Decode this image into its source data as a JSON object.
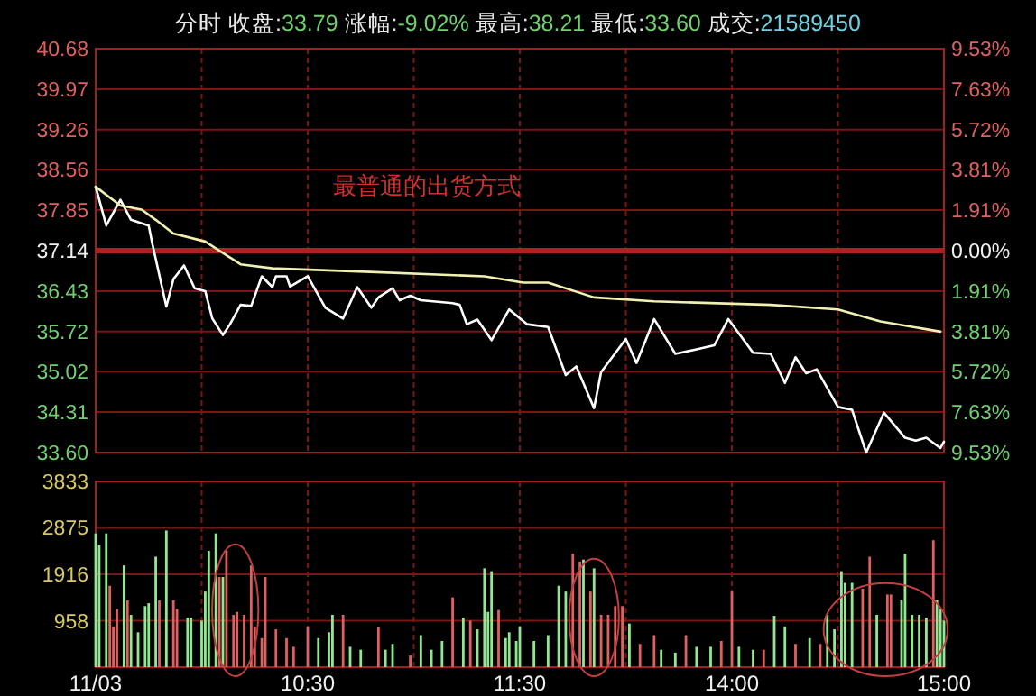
{
  "chart_data": [
    {
      "type": "line",
      "subtitle": "分时  收盘:33.79  涨幅:-9.02%  最高:38.21  最低:33.60  成交:21589450",
      "annotations": [
        "最普通的出货方式"
      ],
      "categories": [
        null,
        null,
        null,
        null,
        null,
        null,
        null,
        null,
        null,
        null,
        null,
        null,
        null,
        null,
        null,
        null,
        null,
        null,
        null,
        null,
        null,
        null,
        null,
        null,
        null,
        null,
        null,
        null,
        null,
        null,
        null,
        null,
        null,
        null,
        null,
        null,
        null,
        null,
        null,
        null,
        null,
        null,
        null,
        null,
        null,
        null,
        null,
        null,
        null,
        null,
        null,
        null,
        null,
        null,
        null,
        null,
        null,
        null,
        null,
        null,
        null,
        null,
        null,
        null,
        null,
        null,
        null,
        null,
        null,
        null,
        null,
        null,
        null,
        null,
        null,
        null,
        null,
        null,
        null,
        null,
        null,
        null,
        null,
        null,
        null,
        null,
        null,
        null,
        null,
        null,
        null,
        null,
        null,
        null,
        null,
        null,
        null,
        null,
        null,
        null,
        null,
        null,
        null,
        null,
        null,
        null,
        null,
        null,
        null,
        null,
        null,
        null,
        null,
        null,
        null,
        null,
        null,
        null,
        null,
        null,
        null,
        null,
        null,
        null,
        null,
        null,
        null,
        null,
        null,
        null,
        null,
        null,
        null,
        null,
        null,
        null,
        null,
        null,
        null,
        null,
        null,
        null,
        null,
        null,
        null,
        null,
        null,
        null,
        null,
        null,
        null,
        null,
        null,
        null,
        null,
        null,
        null,
        null,
        null,
        null,
        null,
        null,
        null,
        null,
        null,
        null,
        null,
        null,
        null,
        null,
        null,
        null,
        null,
        null,
        null,
        null,
        null,
        null,
        null,
        null,
        null,
        null,
        null,
        null,
        null,
        null,
        null,
        null,
        null,
        null,
        null,
        null,
        null,
        null,
        null,
        null,
        null,
        null,
        null,
        null,
        null,
        null,
        null,
        null,
        null,
        null,
        null,
        null,
        null,
        null,
        null,
        null,
        null,
        null,
        null,
        null,
        null,
        null,
        null,
        null,
        null,
        null,
        null,
        null,
        null,
        null,
        null,
        null,
        null,
        null,
        null,
        null,
        null,
        null,
        null,
        null,
        null,
        null,
        null,
        null,
        null
      ],
      "series": [
        {
          "color": "#ffffff",
          "values": [
            38.26,
            null,
            null,
            37.58,
            null,
            null,
            null,
            38.03,
            null,
            null,
            37.68,
            null,
            null,
            null,
            null,
            37.58,
            37.27,
            null,
            null,
            null,
            36.16,
            null,
            36.64,
            null,
            null,
            36.88,
            null,
            null,
            36.48,
            null,
            null,
            36.43,
            null,
            35.95,
            null,
            null,
            35.66,
            null,
            35.85,
            null,
            null,
            36.19,
            null,
            null,
            36.17,
            null,
            null,
            36.69,
            null,
            null,
            36.5,
            36.69,
            null,
            null,
            36.69,
            36.51,
            null,
            null,
            null,
            null,
            36.69,
            null,
            null,
            null,
            null,
            36.14,
            null,
            null,
            null,
            null,
            35.95,
            null,
            null,
            null,
            36.5,
            null,
            null,
            null,
            36.14,
            null,
            36.32,
            null,
            null,
            null,
            36.48,
            null,
            36.27,
            null,
            null,
            36.35,
            null,
            null,
            36.27,
            null,
            null,
            null,
            null,
            null,
            null,
            null,
            null,
            36.22,
            null,
            36.19,
            null,
            35.85,
            null,
            null,
            35.93,
            null,
            null,
            null,
            35.57,
            null,
            null,
            null,
            null,
            36.11,
            null,
            null,
            null,
            null,
            35.85,
            null,
            null,
            null,
            null,
            null,
            35.8,
            null,
            null,
            null,
            null,
            34.96,
            null,
            null,
            35.11,
            null,
            null,
            null,
            null,
            34.38,
            null,
            35.01,
            null,
            null,
            null,
            null,
            null,
            null,
            35.59,
            null,
            null,
            35.17,
            null,
            null,
            null,
            null,
            35.94,
            null,
            null,
            null,
            null,
            null,
            35.33,
            null,
            null,
            null,
            null,
            null,
            35.41,
            null,
            null,
            null,
            null,
            35.48,
            null,
            null,
            null,
            35.94,
            null,
            null,
            null,
            null,
            null,
            null,
            35.35,
            null,
            null,
            null,
            null,
            35.33,
            null,
            null,
            null,
            34.82,
            null,
            null,
            35.27,
            null,
            null,
            34.99,
            null,
            null,
            35.06,
            null,
            null,
            null,
            null,
            null,
            34.4,
            null,
            null,
            null,
            34.35,
            null,
            null,
            null,
            33.6,
            null,
            null,
            null,
            null,
            34.3,
            null,
            null,
            null,
            null,
            null,
            33.86,
            null,
            null,
            33.81,
            null,
            null,
            33.86,
            null,
            null,
            null,
            33.68,
            33.79
          ]
        },
        {
          "color": "#f0f0b0",
          "values": [
            38.26,
            null,
            null,
            null,
            null,
            null,
            null,
            37.93,
            null,
            null,
            null,
            null,
            null,
            37.86,
            null,
            null,
            null,
            37.68,
            null,
            null,
            null,
            null,
            37.44,
            null,
            null,
            null,
            null,
            null,
            null,
            null,
            null,
            37.3,
            null,
            null,
            null,
            null,
            null,
            37.06,
            null,
            null,
            null,
            36.9,
            null,
            null,
            null,
            null,
            null,
            null,
            null,
            null,
            36.83,
            null,
            null,
            null,
            null,
            null,
            null,
            null,
            null,
            null,
            null,
            null,
            null,
            null,
            null,
            null,
            null,
            null,
            null,
            null,
            null,
            null,
            null,
            null,
            null,
            null,
            36.77,
            null,
            null,
            null,
            null,
            null,
            null,
            null,
            null,
            null,
            null,
            null,
            null,
            null,
            null,
            null,
            null,
            null,
            null,
            null,
            null,
            null,
            null,
            null,
            null,
            null,
            null,
            null,
            null,
            null,
            null,
            null,
            null,
            null,
            36.69,
            null,
            null,
            null,
            null,
            null,
            null,
            null,
            null,
            null,
            null,
            36.58,
            null,
            null,
            null,
            null,
            null,
            null,
            36.58,
            null,
            null,
            null,
            null,
            null,
            null,
            null,
            null,
            null,
            null,
            null,
            null,
            36.32,
            null,
            null,
            null,
            null,
            null,
            null,
            null,
            null,
            null,
            null,
            null,
            null,
            null,
            null,
            null,
            null,
            36.25,
            null,
            null,
            null,
            null,
            null,
            null,
            null,
            null,
            null,
            null,
            null,
            null,
            null,
            null,
            null,
            null,
            null,
            null,
            null,
            null,
            null,
            null,
            null,
            null,
            null,
            null,
            null,
            null,
            null,
            null,
            null,
            null,
            36.19,
            null,
            null,
            null,
            null,
            null,
            null,
            null,
            null,
            null,
            null,
            null,
            null,
            null,
            null,
            null,
            null,
            null,
            null,
            36.11,
            null,
            null,
            null,
            null,
            null,
            null,
            null,
            null,
            null,
            null,
            null,
            35.9,
            null,
            null,
            null,
            null,
            null,
            null,
            null,
            null,
            null,
            null,
            null,
            null,
            null,
            null,
            null,
            null,
            35.72,
            null
          ]
        }
      ],
      "ylim": [
        33.6,
        40.68
      ],
      "yticks": [
        {
          "value": 33.6,
          "label": "33.60"
        },
        {
          "value": 34.31,
          "label": "34.31"
        },
        {
          "value": 35.02,
          "label": "35.02"
        },
        {
          "value": 35.72,
          "label": "35.72"
        },
        {
          "value": 36.43,
          "label": "36.43"
        },
        {
          "value": 37.14,
          "label": "37.14"
        },
        {
          "value": 37.85,
          "label": "37.85"
        },
        {
          "value": 38.56,
          "label": "38.56"
        },
        {
          "value": 39.26,
          "label": "39.26"
        },
        {
          "value": 39.97,
          "label": "39.97"
        },
        {
          "value": 40.68,
          "label": "40.68"
        }
      ],
      "y2lim": [
        -9.53,
        9.53
      ],
      "y2ticks": [
        {
          "value": -9.53,
          "label": "9.53%"
        },
        {
          "value": -7.63,
          "label": "7.63%"
        },
        {
          "value": -5.72,
          "label": "5.72%"
        },
        {
          "value": -3.81,
          "label": "3.81%"
        },
        {
          "value": -1.91,
          "label": "1.91%"
        },
        {
          "value": 0,
          "label": "0.00%"
        },
        {
          "value": 1.91,
          "label": "1.91%"
        },
        {
          "value": 3.81,
          "label": "3.81%"
        },
        {
          "value": 5.72,
          "label": "5.72%"
        },
        {
          "value": 7.63,
          "label": "7.63%"
        },
        {
          "value": 9.53,
          "label": "9.53%"
        }
      ],
      "ref_lines": [
        {
          "axis": "y",
          "value": 37.14,
          "color": "#b02020"
        }
      ],
      "grid": true,
      "tick_labels": "y"
    },
    {
      "type": "bar",
      "categories": [
        "11/03",
        null,
        null,
        null,
        null,
        null,
        null,
        null,
        null,
        null,
        null,
        null,
        null,
        null,
        null,
        null,
        null,
        null,
        null,
        null,
        null,
        null,
        null,
        null,
        null,
        null,
        null,
        null,
        null,
        null,
        null,
        null,
        null,
        null,
        null,
        null,
        null,
        null,
        null,
        null,
        null,
        null,
        null,
        null,
        null,
        null,
        null,
        null,
        null,
        null,
        null,
        null,
        null,
        null,
        null,
        null,
        null,
        null,
        null,
        null,
        "10:30",
        null,
        null,
        null,
        null,
        null,
        null,
        null,
        null,
        null,
        null,
        null,
        null,
        null,
        null,
        null,
        null,
        null,
        null,
        null,
        null,
        null,
        null,
        null,
        null,
        null,
        null,
        null,
        null,
        null,
        null,
        null,
        null,
        null,
        null,
        null,
        null,
        null,
        null,
        null,
        null,
        null,
        null,
        null,
        null,
        null,
        null,
        null,
        null,
        null,
        null,
        null,
        null,
        null,
        null,
        null,
        null,
        null,
        null,
        null,
        "11:30",
        null,
        null,
        null,
        null,
        null,
        null,
        null,
        null,
        null,
        null,
        null,
        null,
        null,
        null,
        null,
        null,
        null,
        null,
        null,
        null,
        null,
        null,
        null,
        null,
        null,
        null,
        null,
        null,
        null,
        null,
        null,
        null,
        null,
        null,
        null,
        null,
        null,
        null,
        null,
        null,
        null,
        null,
        null,
        null,
        null,
        null,
        null,
        null,
        null,
        null,
        null,
        null,
        null,
        null,
        null,
        null,
        null,
        null,
        null,
        "14:00",
        null,
        null,
        null,
        null,
        null,
        null,
        null,
        null,
        null,
        null,
        null,
        null,
        null,
        null,
        null,
        null,
        null,
        null,
        null,
        null,
        null,
        null,
        null,
        null,
        null,
        null,
        null,
        null,
        null,
        null,
        null,
        null,
        null,
        null,
        null,
        null,
        null,
        null,
        null,
        null,
        null,
        null,
        null,
        null,
        null,
        null,
        null,
        null,
        null,
        null,
        null,
        null,
        null,
        null,
        null,
        null,
        null,
        null,
        null,
        "15:00"
      ],
      "values": [
        2760,
        2520,
        null,
        2760,
        1680,
        840,
        1200,
        null,
        2100,
        1380,
        1080,
        null,
        720,
        null,
        1260,
        1320,
        null,
        2280,
        1380,
        null,
        2820,
        null,
        1380,
        1200,
        null,
        null,
        1020,
        1020,
        null,
        null,
        960,
        1560,
        2400,
        null,
        2760,
        1860,
        1860,
        2400,
        null,
        1080,
        1140,
        null,
        1080,
        null,
        2100,
        840,
        null,
        600,
        1860,
        null,
        null,
        780,
        null,
        null,
        600,
        null,
        420,
        null,
        null,
        null,
        840,
        null,
        null,
        600,
        null,
        null,
        720,
        1080,
        null,
        null,
        1080,
        null,
        420,
        null,
        null,
        360,
        null,
        null,
        null,
        null,
        820,
        null,
        360,
        null,
        480,
        null,
        null,
        null,
        null,
        240,
        null,
        null,
        660,
        null,
        null,
        360,
        null,
        null,
        540,
        null,
        null,
        1440,
        null,
        null,
        1020,
        null,
        960,
        null,
        780,
        null,
        2040,
        1140,
        1980,
        null,
        1180,
        null,
        600,
        720,
        null,
        540,
        840,
        null,
        null,
        null,
        540,
        null,
        null,
        null,
        660,
        null,
        null,
        1680,
        null,
        1560,
        null,
        2340,
        null,
        2180,
        2220,
        null,
        1560,
        2040,
        null,
        1080,
        null,
        1080,
        null,
        1260,
        null,
        1260,
        null,
        900,
        null,
        null,
        480,
        null,
        null,
        null,
        660,
        null,
        360,
        null,
        null,
        null,
        300,
        null,
        null,
        660,
        null,
        null,
        420,
        null,
        null,
        null,
        420,
        null,
        null,
        540,
        null,
        null,
        1560,
        null,
        420,
        null,
        null,
        null,
        360,
        null,
        null,
        360,
        null,
        null,
        1060,
        null,
        null,
        840,
        null,
        null,
        480,
        null,
        null,
        null,
        600,
        null,
        null,
        480,
        null,
        1080,
        null,
        780,
        null,
        1980,
        1740,
        null,
        1740,
        null,
        null,
        1620,
        null,
        2280,
        null,
        1080,
        null,
        null,
        1500,
        1500,
        null,
        null,
        1380,
        2340,
        null,
        1080,
        null,
        1080,
        null,
        1020,
        null,
        2620,
        1380,
        1200,
        960
      ],
      "colors": [
        "#90e890",
        "#90e890",
        null,
        "#90e890",
        "#e06060",
        "#e06060",
        "#e06060",
        null,
        "#90e890",
        "#e06060",
        "#90e890",
        null,
        "#90e890",
        null,
        "#90e890",
        "#90e890",
        null,
        "#90e890",
        "#e06060",
        null,
        "#90e890",
        null,
        "#e06060",
        "#e06060",
        null,
        null,
        "#90e890",
        "#90e890",
        null,
        null,
        "#90e890",
        "#90e890",
        "#90e890",
        null,
        "#90e890",
        "#e06060",
        "#90e890",
        "#e06060",
        null,
        "#e06060",
        "#e06060",
        null,
        "#e06060",
        null,
        "#e06060",
        "#e06060",
        null,
        "#e06060",
        "#e06060",
        null,
        null,
        "#e06060",
        null,
        null,
        "#e06060",
        null,
        "#e06060",
        null,
        null,
        null,
        "#e06060",
        null,
        null,
        "#90e890",
        null,
        null,
        "#90e890",
        "#90e890",
        null,
        null,
        "#e06060",
        null,
        "#90e890",
        null,
        null,
        "#90e890",
        null,
        null,
        null,
        null,
        "#e06060",
        null,
        "#90e890",
        null,
        "#90e890",
        null,
        null,
        null,
        null,
        "#e06060",
        null,
        null,
        "#90e890",
        null,
        null,
        "#90e890",
        null,
        null,
        "#90e890",
        null,
        null,
        "#e06060",
        null,
        null,
        "#90e890",
        null,
        "#e06060",
        null,
        "#90e890",
        null,
        "#90e890",
        "#90e890",
        "#90e890",
        null,
        "#e06060",
        null,
        "#90e890",
        "#90e890",
        null,
        "#90e890",
        "#90e890",
        null,
        null,
        null,
        "#90e890",
        null,
        null,
        null,
        "#90e890",
        null,
        null,
        "#90e890",
        null,
        "#90e890",
        null,
        "#e06060",
        null,
        "#e06060",
        "#90e890",
        null,
        "#e06060",
        "#90e890",
        null,
        "#e06060",
        null,
        "#e06060",
        null,
        "#e06060",
        null,
        "#e06060",
        null,
        "#90e890",
        null,
        null,
        "#e06060",
        null,
        null,
        null,
        "#e06060",
        null,
        "#90e890",
        null,
        null,
        null,
        "#90e890",
        null,
        null,
        "#e06060",
        null,
        null,
        "#90e890",
        null,
        null,
        null,
        "#90e890",
        null,
        null,
        "#e06060",
        null,
        null,
        "#e06060",
        null,
        "#90e890",
        null,
        null,
        null,
        "#90e890",
        null,
        null,
        "#e06060",
        null,
        null,
        "#90e890",
        null,
        null,
        "#90e890",
        null,
        null,
        "#e06060",
        null,
        null,
        null,
        "#90e890",
        null,
        null,
        "#e06060",
        null,
        "#90e890",
        null,
        "#90e890",
        null,
        "#90e890",
        "#90e890",
        null,
        "#90e890",
        null,
        null,
        "#e06060",
        null,
        "#e06060",
        null,
        "#90e890",
        null,
        null,
        "#e06060",
        "#e06060",
        null,
        null,
        "#90e890",
        "#90e890",
        null,
        "#90e890",
        null,
        "#90e890",
        null,
        "#90e890",
        null,
        "#e06060",
        "#90e890",
        "#90e890",
        "#90e890"
      ],
      "ylim": [
        0,
        3833
      ],
      "yticks": [
        958,
        1916,
        2875,
        3833
      ],
      "grid": true
    }
  ]
}
